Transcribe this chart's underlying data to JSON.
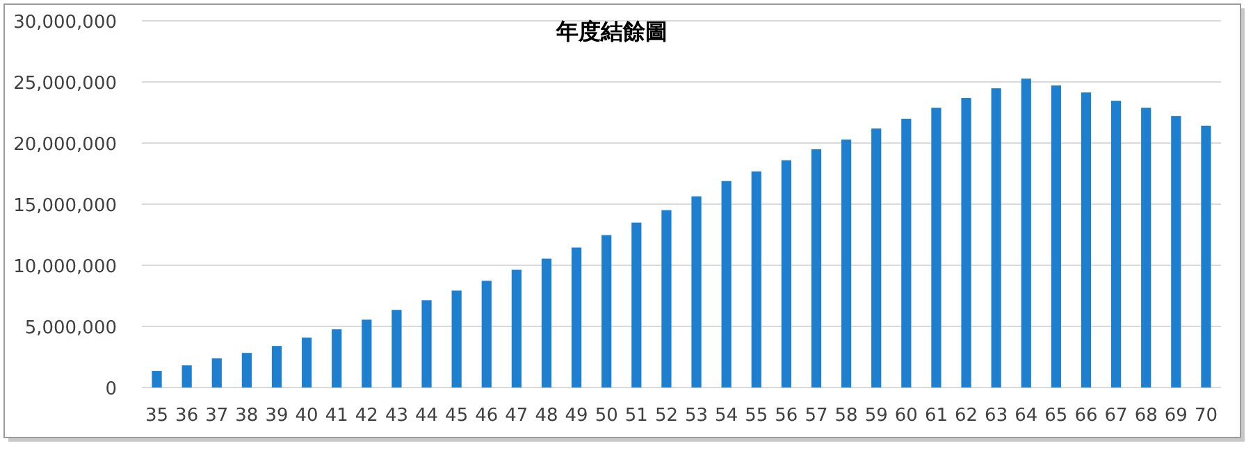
{
  "chart_data": {
    "type": "bar",
    "title": "年度結餘圖",
    "categories": [
      "35",
      "36",
      "37",
      "38",
      "39",
      "40",
      "41",
      "42",
      "43",
      "44",
      "45",
      "46",
      "47",
      "48",
      "49",
      "50",
      "51",
      "52",
      "53",
      "54",
      "55",
      "56",
      "57",
      "58",
      "59",
      "60",
      "61",
      "62",
      "63",
      "64",
      "65",
      "66",
      "67",
      "68",
      "69",
      "70"
    ],
    "values": [
      1360000,
      1810000,
      2380000,
      2830000,
      3400000,
      4080000,
      4760000,
      5550000,
      6350000,
      7140000,
      7930000,
      8730000,
      9630000,
      10540000,
      11450000,
      12470000,
      13490000,
      14510000,
      15640000,
      16890000,
      17680000,
      18590000,
      19490000,
      20290000,
      21190000,
      21990000,
      22890000,
      23690000,
      24480000,
      25270000,
      24710000,
      24140000,
      23460000,
      22890000,
      22210000,
      21420000
    ],
    "color": "#1f7fcf",
    "ylim": [
      0,
      30000000
    ],
    "yticks": [
      0,
      {
        "value": 5000000,
        "label": "5,000,000"
      },
      {
        "value": 10000000,
        "label": "10,000,000"
      },
      {
        "value": 15000000,
        "label": "15,000,000"
      },
      {
        "value": 20000000,
        "label": "20,000,000"
      },
      {
        "value": 25000000,
        "label": "25,000,000"
      },
      {
        "value": 30000000,
        "label": "30,000,000"
      }
    ],
    "grid": "y"
  }
}
